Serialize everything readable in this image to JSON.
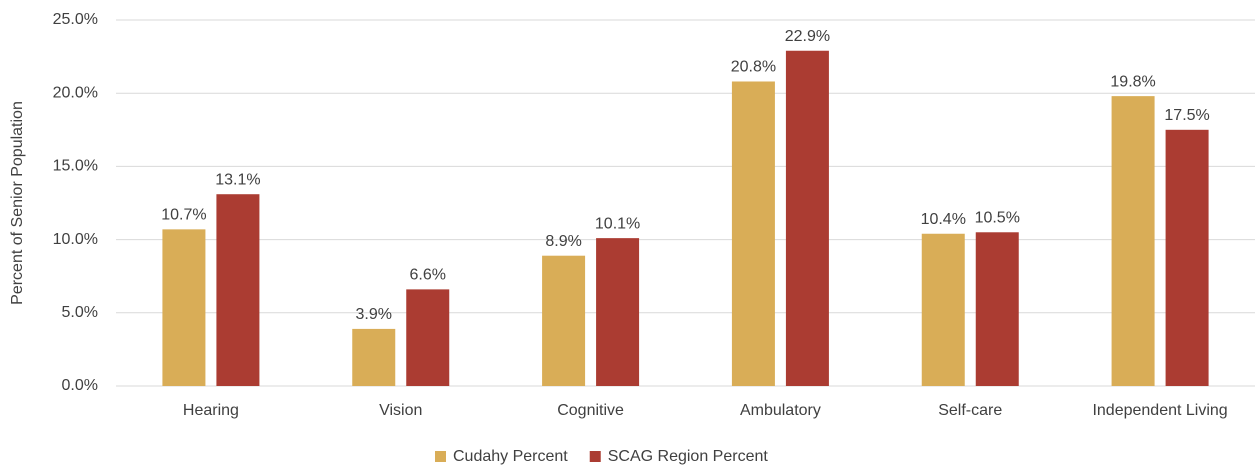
{
  "chart_data": {
    "type": "bar",
    "y_axis_label": "Percent of Senior Population",
    "categories": [
      "Hearing",
      "Vision",
      "Cognitive",
      "Ambulatory",
      "Self-care",
      "Independent Living"
    ],
    "series": [
      {
        "name": "Cudahy Percent",
        "color": "#d9ad57",
        "values": [
          10.7,
          3.9,
          8.9,
          20.8,
          10.4,
          19.8
        ],
        "value_labels": [
          "10.7%",
          "3.9%",
          "8.9%",
          "20.8%",
          "10.4%",
          "19.8%"
        ]
      },
      {
        "name": "SCAG Region Percent",
        "color": "#ab3c32",
        "values": [
          13.1,
          6.6,
          10.1,
          22.9,
          10.5,
          17.5
        ],
        "value_labels": [
          "13.1%",
          "6.6%",
          "10.1%",
          "22.9%",
          "10.5%",
          "17.5%"
        ]
      }
    ],
    "ylim": [
      0,
      25
    ],
    "yticks": [
      {
        "value": 0,
        "label": "0.0%"
      },
      {
        "value": 5,
        "label": "5.0%"
      },
      {
        "value": 10,
        "label": "10.0%"
      },
      {
        "value": 15,
        "label": "15.0%"
      },
      {
        "value": 20,
        "label": "20.0%"
      },
      {
        "value": 25,
        "label": "25.0%"
      }
    ],
    "grid": true,
    "legend": "bottom"
  }
}
